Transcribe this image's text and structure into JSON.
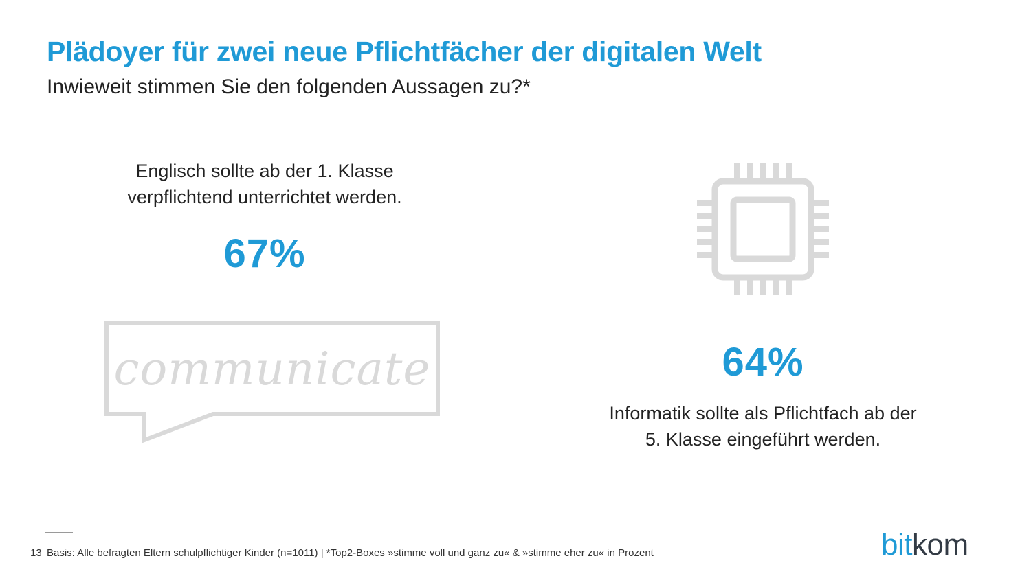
{
  "header": {
    "title": "Plädoyer für zwei neue Pflichtfächer der digitalen Welt",
    "subtitle": "Inwieweit stimmen Sie den folgenden Aussagen zu?*"
  },
  "stats": [
    {
      "lines": [
        "Englisch sollte ab der 1. Klasse",
        "verpflichtend unterrichtet werden."
      ],
      "value": "67%",
      "icon": "speech-bubble-icon",
      "icon_text": "communicate"
    },
    {
      "lines": [
        "Informatik sollte als Pflichtfach ab der",
        "5. Klasse eingeführt werden."
      ],
      "value": "64%",
      "icon": "microchip-icon"
    }
  ],
  "footer": {
    "page_number": "13",
    "note": "Basis: Alle befragten Eltern schulpflichtiger Kinder (n=1011) | *Top2-Boxes »stimme voll und ganz zu« & »stimme eher zu« in Prozent"
  },
  "logo": {
    "part1": "bit",
    "part2": "kom"
  },
  "colors": {
    "accent": "#1f9ad6",
    "icon_gray": "#d9d9d9",
    "text": "#222222"
  }
}
